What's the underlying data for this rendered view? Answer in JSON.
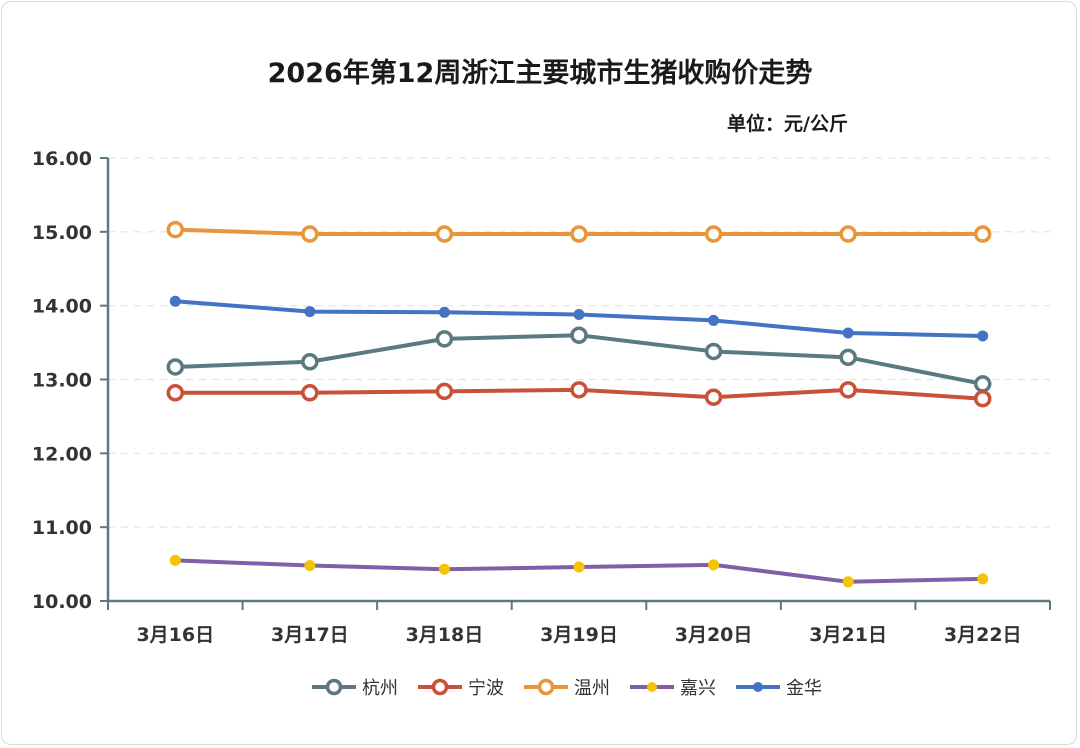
{
  "chart_data": {
    "type": "line",
    "title": "2026年第12周浙江主要城市生猪收购价走势",
    "unit_label": "单位：元/公斤",
    "xlabel": "",
    "ylabel": "",
    "ylim": [
      10,
      16
    ],
    "yticks": [
      "10.00",
      "11.00",
      "12.00",
      "13.00",
      "14.00",
      "15.00",
      "16.00"
    ],
    "grid": true,
    "legend_position": "bottom",
    "categories": [
      "3月16日",
      "3月17日",
      "3月18日",
      "3月19日",
      "3月20日",
      "3月21日",
      "3月22日"
    ],
    "series": [
      {
        "name": "杭州",
        "color": "#5a7a80",
        "marker": "hollow-circle",
        "values": [
          13.17,
          13.24,
          13.55,
          13.6,
          13.38,
          13.3,
          12.94
        ]
      },
      {
        "name": "宁波",
        "color": "#c9513a",
        "marker": "hollow-circle",
        "values": [
          12.82,
          12.82,
          12.84,
          12.86,
          12.76,
          12.86,
          12.74
        ]
      },
      {
        "name": "温州",
        "color": "#e8963a",
        "marker": "hollow-circle",
        "values": [
          15.03,
          14.97,
          14.97,
          14.97,
          14.97,
          14.97,
          14.97
        ]
      },
      {
        "name": "嘉兴",
        "color": "#7f5fa6",
        "marker_color": "#f5c400",
        "marker": "filled-dot",
        "values": [
          10.55,
          10.48,
          10.43,
          10.46,
          10.49,
          10.26,
          10.3
        ]
      },
      {
        "name": "金华",
        "color": "#4472c4",
        "marker": "filled-dot",
        "values": [
          14.06,
          13.92,
          13.91,
          13.88,
          13.8,
          13.63,
          13.59
        ]
      }
    ]
  }
}
